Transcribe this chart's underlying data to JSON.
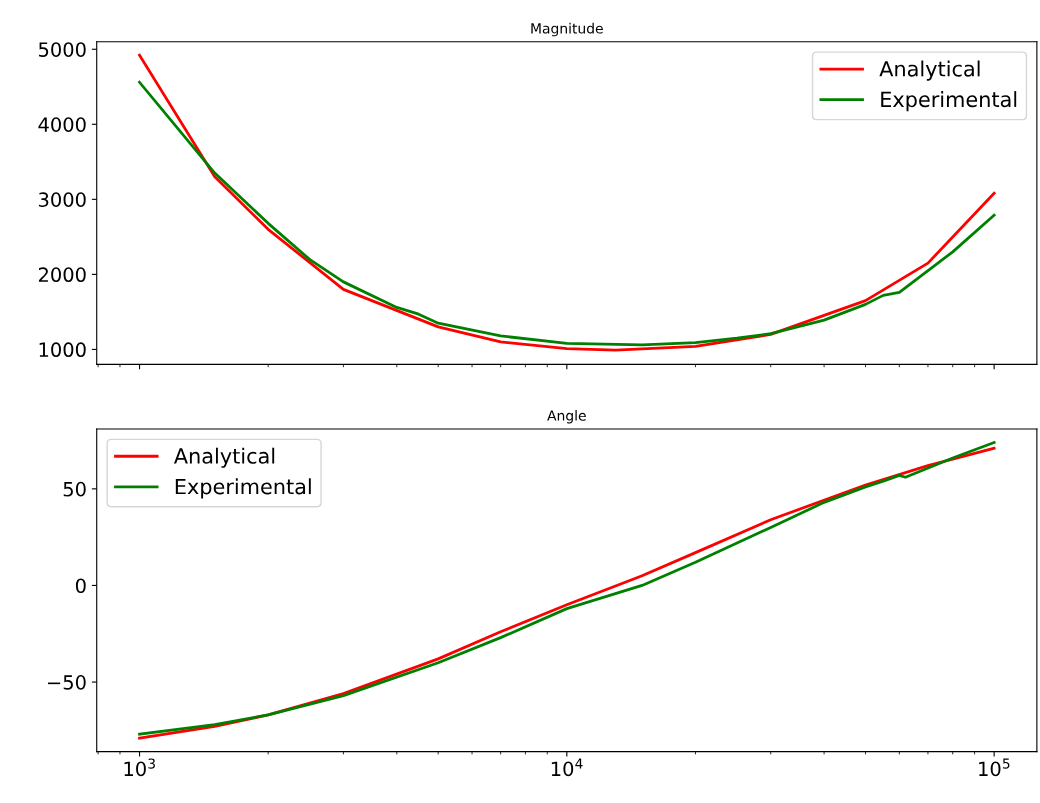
{
  "chart_data": [
    {
      "type": "line",
      "title": "Magnitude",
      "log": "x",
      "xlim": [
        794,
        125900
      ],
      "xticks": [
        {
          "value": 1000,
          "label": null
        },
        {
          "value": 10000,
          "label": null
        },
        {
          "value": 100000,
          "label": null
        }
      ],
      "ylim": [
        800,
        5100
      ],
      "yticks": [
        1000,
        2000,
        3000,
        4000,
        5000
      ],
      "tick_labels": "y",
      "legend": "upper right",
      "grid": false,
      "series": [
        {
          "name": "Analytical",
          "color": "#ff0000",
          "x": [
            1000,
            1500,
            2000,
            3000,
            5000,
            7000,
            10000,
            13000,
            20000,
            30000,
            50000,
            70000,
            100000
          ],
          "values": [
            4920,
            3300,
            2600,
            1800,
            1300,
            1100,
            1010,
            990,
            1040,
            1200,
            1650,
            2150,
            3080
          ]
        },
        {
          "name": "Experimental",
          "color": "#008000",
          "x": [
            1000,
            1500,
            2000,
            2500,
            3000,
            4000,
            4500,
            5000,
            7000,
            10000,
            15000,
            20000,
            25000,
            30000,
            40000,
            50000,
            55000,
            60000,
            80000,
            100000
          ],
          "values": [
            4560,
            3350,
            2680,
            2200,
            1900,
            1560,
            1470,
            1350,
            1180,
            1080,
            1060,
            1090,
            1150,
            1210,
            1390,
            1600,
            1720,
            1760,
            2300,
            2790
          ]
        }
      ]
    },
    {
      "type": "line",
      "title": "Angle",
      "log": "x",
      "xlim": [
        794,
        125900
      ],
      "xticks": [
        {
          "value": 1000,
          "label": "10$^{3}$"
        },
        {
          "value": 10000,
          "label": "10$^{4}$"
        },
        {
          "value": 100000,
          "label": "10$^{5}$"
        }
      ],
      "ylim": [
        -86,
        81
      ],
      "yticks": [
        {
          "value": -50,
          "label": "−50"
        },
        0,
        50
      ],
      "legend": "upper left",
      "grid": false,
      "series": [
        {
          "name": "Analytical",
          "color": "#ff0000",
          "x": [
            1000,
            1500,
            2000,
            3000,
            5000,
            7000,
            10000,
            15000,
            20000,
            30000,
            50000,
            70000,
            100000
          ],
          "values": [
            -79,
            -73,
            -67,
            -56,
            -38,
            -24,
            -10,
            5,
            17,
            34,
            52,
            62,
            71
          ]
        },
        {
          "name": "Experimental",
          "color": "#008000",
          "x": [
            1000,
            1500,
            2000,
            3000,
            5000,
            7000,
            10000,
            15000,
            20000,
            30000,
            40000,
            50000,
            55000,
            60000,
            62000,
            80000,
            100000
          ],
          "values": [
            -77,
            -72,
            -67,
            -57,
            -40,
            -27,
            -12,
            0,
            12,
            30,
            43,
            51,
            54,
            57,
            56,
            66,
            74
          ]
        }
      ]
    }
  ]
}
